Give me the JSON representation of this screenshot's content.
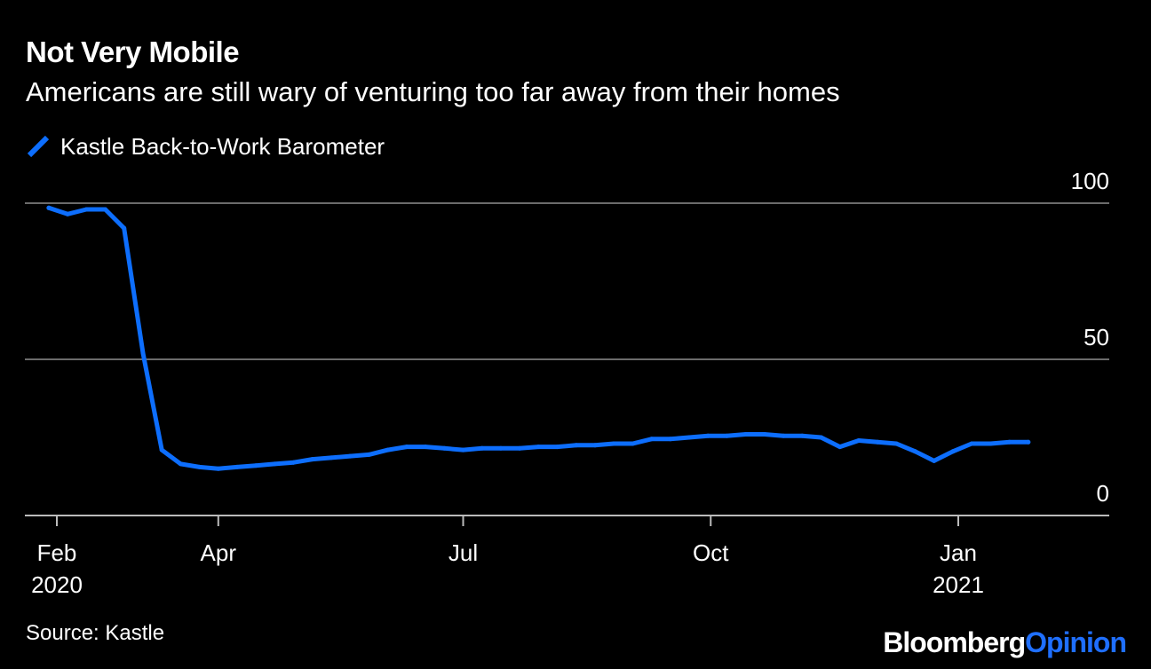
{
  "colors": {
    "background": "#000000",
    "text": "#ffffff",
    "series": "#0d6efd",
    "gridline": "#6b6b6b",
    "baseline": "#bbbbbb",
    "brand_accent": "#1f6fff"
  },
  "footer": {
    "source": "Source: Kastle",
    "brand_part1": "Bloomberg",
    "brand_part2": "Opinion"
  },
  "chart_data": {
    "type": "line",
    "title": "Not Very Mobile",
    "subtitle": "Americans are still wary of venturing too far away from their homes",
    "y_axis_position": "right",
    "ylim": [
      0,
      100
    ],
    "yticks": [
      0,
      50,
      100
    ],
    "grid": true,
    "legend_position": "top-left",
    "x_ticks": [
      {
        "date": "2020-02-01",
        "label": "Feb",
        "year": "2020"
      },
      {
        "date": "2020-04-01",
        "label": "Apr",
        "year": ""
      },
      {
        "date": "2020-07-01",
        "label": "Jul",
        "year": ""
      },
      {
        "date": "2020-10-01",
        "label": "Oct",
        "year": ""
      },
      {
        "date": "2021-01-01",
        "label": "Jan",
        "year": "2021"
      }
    ],
    "series": [
      {
        "name": "Kastle Back-to-Work Barometer",
        "x": [
          "2020-01-29",
          "2020-02-05",
          "2020-02-12",
          "2020-02-19",
          "2020-02-26",
          "2020-03-04",
          "2020-03-11",
          "2020-03-18",
          "2020-03-25",
          "2020-04-01",
          "2020-04-08",
          "2020-04-15",
          "2020-04-22",
          "2020-04-29",
          "2020-05-06",
          "2020-05-13",
          "2020-05-20",
          "2020-05-27",
          "2020-06-03",
          "2020-06-10",
          "2020-06-17",
          "2020-06-24",
          "2020-07-01",
          "2020-07-08",
          "2020-07-15",
          "2020-07-22",
          "2020-07-29",
          "2020-08-05",
          "2020-08-12",
          "2020-08-19",
          "2020-08-26",
          "2020-09-02",
          "2020-09-09",
          "2020-09-16",
          "2020-09-23",
          "2020-09-30",
          "2020-10-07",
          "2020-10-14",
          "2020-10-21",
          "2020-10-28",
          "2020-11-04",
          "2020-11-11",
          "2020-11-18",
          "2020-11-25",
          "2020-12-02",
          "2020-12-09",
          "2020-12-16",
          "2020-12-23",
          "2020-12-30",
          "2021-01-06",
          "2021-01-13",
          "2021-01-20",
          "2021-01-27"
        ],
        "values": [
          98.5,
          96.5,
          98,
          98,
          92,
          52,
          21,
          16.5,
          15.5,
          15,
          15.5,
          16,
          16.5,
          17,
          18,
          18.5,
          19,
          19.5,
          21,
          22,
          22,
          21.5,
          21,
          21.5,
          21.5,
          21.5,
          22,
          22,
          22.5,
          22.5,
          23,
          23,
          24.5,
          24.5,
          25,
          25.5,
          25.5,
          26,
          26,
          25.5,
          25.5,
          25,
          22,
          24,
          23.5,
          23,
          20.5,
          17.5,
          20.5,
          23,
          23,
          23.5,
          23.5
        ]
      }
    ]
  }
}
